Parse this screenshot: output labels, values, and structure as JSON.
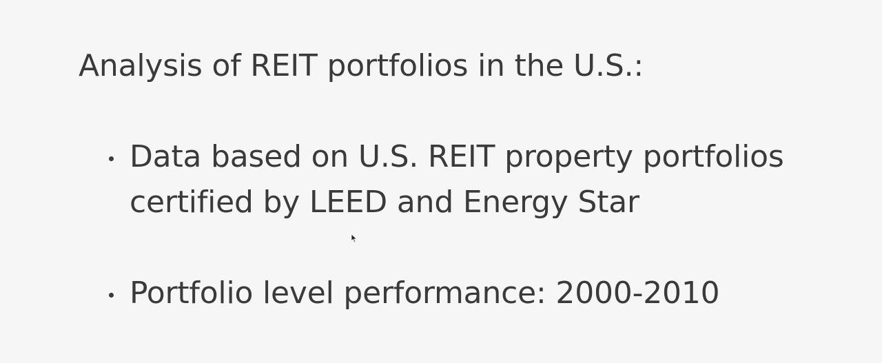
{
  "slide": {
    "heading": "Analysis of REIT portfolios in the U.S.:",
    "bullets": [
      {
        "lines": [
          "Data based on U.S. REIT property portfolios",
          "certified by LEED and Energy Star"
        ]
      },
      {
        "lines": [
          "Portfolio level performance: 2000-2010"
        ]
      }
    ]
  },
  "icons": {
    "cursor": "mouse-pointer-icon"
  }
}
